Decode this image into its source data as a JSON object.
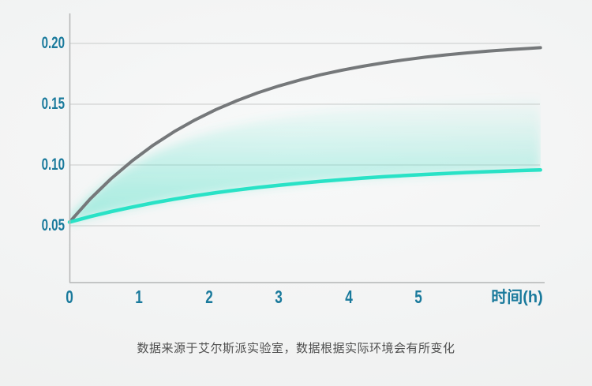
{
  "page": {
    "caption": "数据来源于艾尔斯派实验室，数据根据实际环境会有所变化"
  },
  "chart_data": {
    "type": "line",
    "title": "",
    "xlabel": "时间(h)",
    "ylabel": "",
    "x_tick_labels": [
      "0",
      "1",
      "2",
      "3",
      "4",
      "5"
    ],
    "y_tick_labels": [
      "0.20",
      "0.15",
      "0.10",
      "0.05"
    ],
    "y_ticks": [
      0.2,
      0.15,
      0.1,
      0.05
    ],
    "x_ticks": [
      0,
      1,
      2,
      3,
      4,
      5
    ],
    "xlim": [
      0,
      6.75
    ],
    "ylim": [
      0,
      0.225
    ],
    "grid": "horizontal",
    "legend": "none",
    "colors": {
      "tick_label": "#1a7a9c",
      "axis_line": "#b3b5b5",
      "grid_line": "#c9cbca",
      "gray_curve": "#75787a",
      "teal_curve": "#29e2c6",
      "glow": "#49e0c6",
      "caption_text": "#4f4f4f"
    },
    "x": [
      0,
      0.3,
      0.6,
      0.9,
      1.2,
      1.5,
      1.8,
      2.1,
      2.4,
      2.7,
      3.0,
      3.3,
      3.6,
      3.9,
      4.2,
      4.5,
      4.8,
      5.1,
      5.4,
      5.7,
      6.0,
      6.3,
      6.6,
      6.75
    ],
    "series": [
      {
        "name": "gray_curve",
        "color": "#75787a",
        "values": [
          0.053,
          0.0722,
          0.0889,
          0.1035,
          0.1163,
          0.1274,
          0.1371,
          0.1456,
          0.1529,
          0.1594,
          0.165,
          0.1699,
          0.1742,
          0.1779,
          0.1812,
          0.184,
          0.1865,
          0.1887,
          0.1906,
          0.1922,
          0.1937,
          0.1949,
          0.196,
          0.1965
        ]
      },
      {
        "name": "teal_curve",
        "color": "#29e2c6",
        "values": [
          0.053,
          0.0576,
          0.0617,
          0.0654,
          0.0688,
          0.0719,
          0.0747,
          0.0772,
          0.0794,
          0.0815,
          0.0833,
          0.085,
          0.0865,
          0.0879,
          0.0892,
          0.0903,
          0.0913,
          0.0922,
          0.093,
          0.0938,
          0.0945,
          0.0951,
          0.0957,
          0.0959
        ]
      }
    ]
  }
}
